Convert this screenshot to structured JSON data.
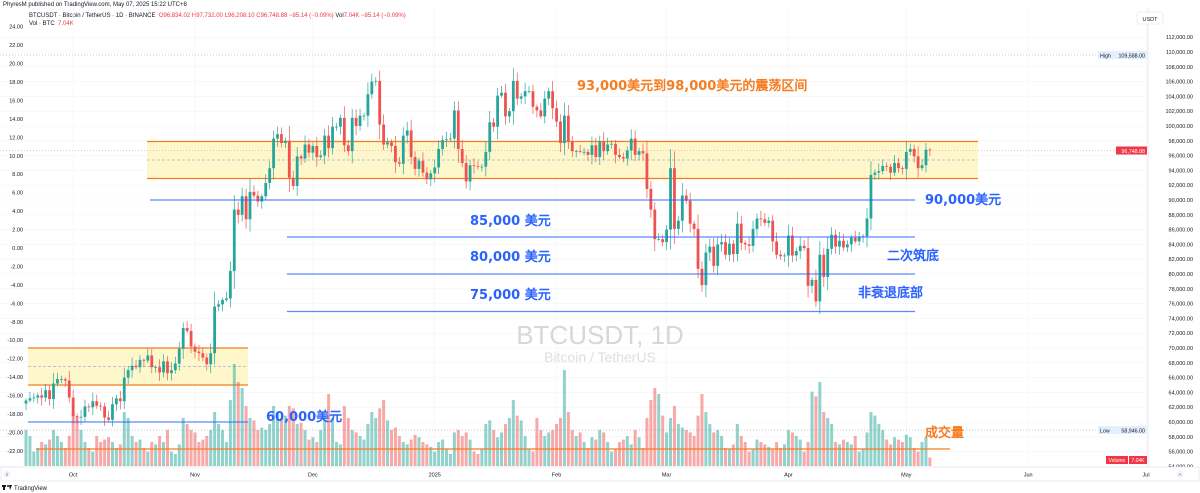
{
  "publisher": "PhyresM published on TradingView.com, May 07, 2025 15:22 UTC+8",
  "legend": {
    "symbol": "BTCUSDT · Bitcoin / TetherUS · 1D · BINANCE",
    "open": "O96,834.02",
    "high": "H97,732.00",
    "low": "L96,208.10",
    "close": "C96,748.88",
    "change": "−85.14 (−0.09%)",
    "vol_label": "Vol",
    "vol_value": "7.04K",
    "vol_change": "−85.14 (−0.09%)",
    "vol_row_label": "Vol · BTC",
    "vol_row_value": "7.04K"
  },
  "watermark": {
    "symbol": "BTCUSDT, 1D",
    "name": "Bitcoin / TetherUS"
  },
  "currency": "USDT",
  "markers": {
    "high_label": "High",
    "high_value": "109,588.00",
    "low_label": "Low",
    "low_value": "58,946.00",
    "last_price": "96,748.88",
    "volume_label": "Volume",
    "volume_value": "7.04K"
  },
  "annotations": {
    "range": "93,000美元到98,000美元的震荡区间",
    "l85": "85,000 美元",
    "l80": "80,000 美元",
    "l75": "75,000 美元",
    "l90": "90,000美元",
    "double_bottom": "二次筑底",
    "non_recession": "非衰退底部",
    "l60": "60,000美元",
    "volume": "成交量"
  },
  "footer": {
    "logo": "TradingView",
    "scroll_left": "2",
    "scroll_right": "A"
  },
  "colors": {
    "up": "#26a69a",
    "down": "#ef5350",
    "orange": "#f57c1f",
    "blue": "#2962ff",
    "band": "#fff7cc"
  },
  "chart_data": {
    "type": "candlestick",
    "title": "BTCUSDT · Bitcoin / TetherUS · 1D · BINANCE",
    "start_date": "2024-09-19",
    "end_date": "2025-05-07",
    "unit": "thousand USDT",
    "first_open": 62.5,
    "closes": [
      62.9,
      63.2,
      63.3,
      63.6,
      63.3,
      64.3,
      63.1,
      65.2,
      65.8,
      65.8,
      65.6,
      63.3,
      60.8,
      60.6,
      60.7,
      62.1,
      62.0,
      62.8,
      62.2,
      62.1,
      60.6,
      60.3,
      62.4,
      63.2,
      62.8,
      66.0,
      67.0,
      67.6,
      67.4,
      68.4,
      68.3,
      69.0,
      67.4,
      67.4,
      66.7,
      68.2,
      66.6,
      67.0,
      67.9,
      69.9,
      72.7,
      72.3,
      70.2,
      69.5,
      69.3,
      68.7,
      67.8,
      69.3,
      75.6,
      75.9,
      76.5,
      76.7,
      80.4,
      88.7,
      88.0,
      90.5,
      87.4,
      91.1,
      90.6,
      89.8,
      90.5,
      92.3,
      94.3,
      98.3,
      98.9,
      97.7,
      98.0,
      93.0,
      91.9,
      95.9,
      95.6,
      97.5,
      96.4,
      97.3,
      95.8,
      96.0,
      98.7,
      97.0,
      99.9,
      99.9,
      101.1,
      97.4,
      96.6,
      101.1,
      100.0,
      101.4,
      101.4,
      104.3,
      106.0,
      106.1,
      100.2,
      97.5,
      97.8,
      97.3,
      95.1,
      94.9,
      98.7,
      99.4,
      95.8,
      94.2,
      95.3,
      93.7,
      92.8,
      93.6,
      94.4,
      96.9,
      98.1,
      98.2,
      98.3,
      102.1,
      96.9,
      95.0,
      92.5,
      94.7,
      94.6,
      94.5,
      94.5,
      96.5,
      100.5,
      99.9,
      104.1,
      104.5,
      101.3,
      102.0,
      106.1,
      103.7,
      104.0,
      104.7,
      104.7,
      102.6,
      102.1,
      101.3,
      103.7,
      104.7,
      102.4,
      100.6,
      97.7,
      101.4,
      97.9,
      96.6,
      96.6,
      96.5,
      96.5,
      96.1,
      97.4,
      95.8,
      97.9,
      96.6,
      97.5,
      97.6,
      96.1,
      95.8,
      95.6,
      96.7,
      98.3,
      96.1,
      96.6,
      96.3,
      91.5,
      88.7,
      84.7,
      84.7,
      84.3,
      86.0,
      94.3,
      86.1,
      87.2,
      90.6,
      89.9,
      86.8,
      86.1,
      80.7,
      78.5,
      82.9,
      83.7,
      81.1,
      84.0,
      84.3,
      82.6,
      84.1,
      82.7,
      86.8,
      84.2,
      84.0,
      83.8,
      86.1,
      87.5,
      87.4,
      86.9,
      87.2,
      84.4,
      82.6,
      82.4,
      82.5,
      85.2,
      82.5,
      83.1,
      83.8,
      83.5,
      78.4,
      79.2,
      76.3,
      82.6,
      79.6,
      83.4,
      85.3,
      83.7,
      84.5,
      83.6,
      84.0,
      84.9,
      84.4,
      85.0,
      85.1,
      87.5,
      93.4,
      93.7,
      93.9,
      94.6,
      94.5,
      93.7,
      95.0,
      94.3,
      94.2,
      96.5,
      96.9,
      95.9,
      94.3,
      94.7,
      96.8,
      96.75
    ],
    "volumes_k": [
      30,
      25,
      12,
      15,
      20,
      18,
      22,
      30,
      25,
      20,
      15,
      25,
      45,
      40,
      30,
      20,
      15,
      12,
      25,
      20,
      22,
      24,
      20,
      15,
      18,
      45,
      40,
      25,
      20,
      22,
      15,
      12,
      20,
      18,
      25,
      20,
      30,
      12,
      10,
      18,
      40,
      35,
      30,
      28,
      20,
      22,
      25,
      30,
      45,
      35,
      30,
      20,
      55,
      85,
      70,
      65,
      50,
      40,
      38,
      30,
      32,
      30,
      35,
      50,
      45,
      40,
      42,
      50,
      48,
      35,
      36,
      30,
      22,
      24,
      20,
      30,
      42,
      60,
      40,
      20,
      18,
      50,
      40,
      30,
      28,
      25,
      22,
      35,
      45,
      40,
      48,
      55,
      38,
      30,
      32,
      25,
      20,
      18,
      22,
      26,
      24,
      20,
      18,
      16,
      12,
      20,
      22,
      14,
      10,
      28,
      30,
      25,
      28,
      22,
      12,
      10,
      14,
      35,
      38,
      30,
      24,
      28,
      35,
      40,
      55,
      42,
      38,
      25,
      14,
      12,
      40,
      30,
      25,
      28,
      30,
      35,
      40,
      80,
      45,
      30,
      25,
      28,
      20,
      15,
      24,
      22,
      30,
      28,
      20,
      12,
      14,
      20,
      22,
      25,
      18,
      30,
      24,
      15,
      40,
      55,
      65,
      60,
      42,
      28,
      40,
      50,
      35,
      32,
      30,
      28,
      25,
      42,
      60,
      45,
      35,
      28,
      30,
      25,
      15,
      14,
      18,
      35,
      25,
      20,
      12,
      14,
      22,
      20,
      18,
      16,
      14,
      20,
      15,
      18,
      30,
      28,
      25,
      22,
      12,
      20,
      62,
      58,
      70,
      45,
      40,
      35,
      20,
      18,
      22,
      20,
      18,
      25,
      12,
      14,
      28,
      45,
      42,
      35,
      30,
      22,
      18,
      24,
      22,
      20,
      26,
      24,
      15,
      12,
      20,
      24,
      7
    ],
    "price_axis": {
      "ticks": [
        "112,000.00",
        "110,000.00",
        "108,000.00",
        "106,000.00",
        "104,000.00",
        "102,000.00",
        "100,000.00",
        "98,000.00",
        "96,000.00",
        "94,000.00",
        "92,000.00",
        "90,000.00",
        "88,000.00",
        "86,000.00",
        "84,000.00",
        "82,000.00",
        "80,000.00",
        "78,000.00",
        "76,000.00",
        "74,000.00",
        "72,000.00",
        "70,000.00",
        "68,000.00",
        "66,000.00",
        "64,000.00",
        "62,000.00",
        "60,000.00",
        "58,000.00",
        "56,000.00",
        "54,000.00"
      ],
      "range": [
        54000,
        112000
      ]
    },
    "percent_axis": {
      "ticks": [
        "24.00",
        "22.00",
        "20.00",
        "18.00",
        "16.00",
        "14.00",
        "12.00",
        "10.00",
        "8.00",
        "6.00",
        "4.00",
        "2.00",
        "0.00",
        "-2.00",
        "-4.00",
        "-6.00",
        "-8.00",
        "-10.00",
        "-12.00",
        "-14.00",
        "-16.00",
        "-18.00",
        "-20.00",
        "-22.00"
      ]
    },
    "time_axis": {
      "ticks": [
        "Oct",
        "Nov",
        "Dec",
        "2025",
        "Feb",
        "Mar",
        "Apr",
        "May",
        "Jun",
        "Jul"
      ],
      "tick_day_index": [
        12,
        43,
        73,
        104,
        135,
        163,
        194,
        224,
        255,
        285
      ]
    },
    "levels": {
      "range_zone": [
        93000,
        98000
      ],
      "range_mid": 95500,
      "lower_zone": [
        65000,
        70000
      ],
      "lower_mid": 67500,
      "support_lines": [
        90000,
        85000,
        80000,
        75000,
        60000
      ],
      "high": 109588,
      "low": 58946,
      "last": 96748.88
    }
  }
}
